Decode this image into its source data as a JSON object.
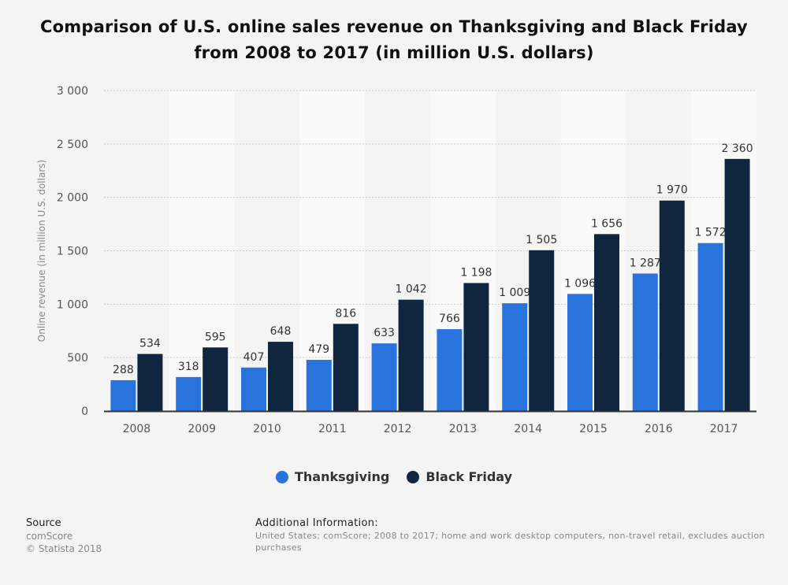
{
  "title": "Comparison of U.S. online sales revenue on Thanksgiving and Black Friday from 2008 to 2017 (in million U.S. dollars)",
  "source": {
    "heading": "Source",
    "line1": "comScore",
    "line2": "© Statista 2018"
  },
  "additional_info": {
    "heading": "Additional Information:",
    "text": "United States; comScore; 2008 to 2017; home and work desktop computers, non-travel retail, excludes auction purchases"
  },
  "colors": {
    "thanksgiving": "#2874dc",
    "black_friday": "#10263f",
    "band": "#fafafa",
    "grid": "#c8c8c8",
    "axis": "#333333"
  },
  "chart_data": {
    "type": "bar",
    "categories": [
      "2008",
      "2009",
      "2010",
      "2011",
      "2012",
      "2013",
      "2014",
      "2015",
      "2016",
      "2017"
    ],
    "series": [
      {
        "name": "Thanksgiving",
        "values": [
          288,
          318,
          407,
          479,
          633,
          766,
          1009,
          1096,
          1287,
          1572
        ],
        "labels": [
          "288",
          "318",
          "407",
          "479",
          "633",
          "766",
          "1 009",
          "1 096",
          "1 287",
          "1 572"
        ]
      },
      {
        "name": "Black Friday",
        "values": [
          534,
          595,
          648,
          816,
          1042,
          1198,
          1505,
          1656,
          1970,
          2360
        ],
        "labels": [
          "534",
          "595",
          "648",
          "816",
          "1 042",
          "1 198",
          "1 505",
          "1 656",
          "1 970",
          "2 360"
        ]
      }
    ],
    "xlabel": "",
    "ylabel": "Online revenue (in million U.S. dollars)",
    "ylim": [
      0,
      3000
    ],
    "yticks": [
      0,
      500,
      1000,
      1500,
      2000,
      2500,
      3000
    ],
    "ytick_labels": [
      "0",
      "500",
      "1 000",
      "1 500",
      "2 000",
      "2 500",
      "3 000"
    ],
    "grid": true,
    "legend_position": "bottom-center"
  }
}
